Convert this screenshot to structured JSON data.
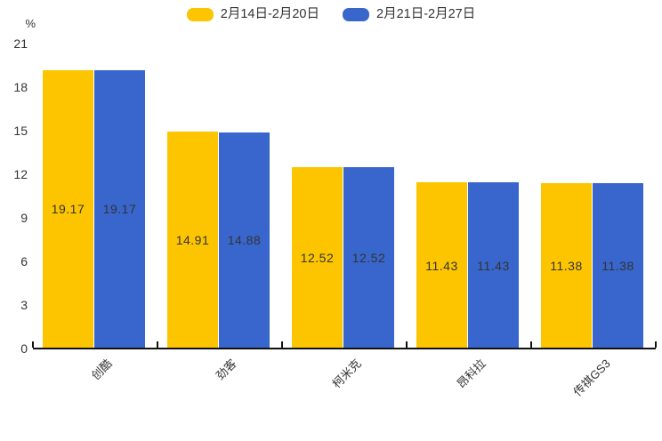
{
  "chart_data": {
    "type": "bar",
    "title": "",
    "categories": [
      "创酷",
      "劲客",
      "柯米克",
      "昂科拉",
      "传祺GS3"
    ],
    "series": [
      {
        "name": "2月14日-2月20日",
        "color": "#FDC500",
        "values": [
          19.17,
          14.91,
          12.52,
          11.43,
          11.38
        ]
      },
      {
        "name": "2月21日-2月27日",
        "color": "#3866CC",
        "values": [
          19.17,
          14.88,
          12.52,
          11.43,
          11.38
        ]
      }
    ],
    "xlabel": "",
    "ylabel": "%",
    "ylim": [
      0,
      21
    ],
    "yticks": [
      0,
      3,
      6,
      9,
      12,
      15,
      18,
      21
    ],
    "grid": false,
    "legend_position": "top-center",
    "value_labels": "inside-middle",
    "colors": {
      "axis": "#111111",
      "text": "#333333",
      "background": "#ffffff"
    }
  }
}
